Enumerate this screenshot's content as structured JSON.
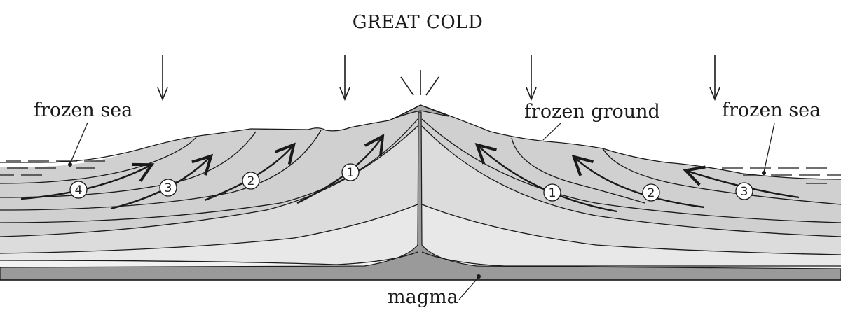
{
  "diagram": {
    "title": "GREAT COLD",
    "labels": {
      "frozen_sea_left": "frozen sea",
      "frozen_ground": "frozen ground",
      "frozen_sea_right": "frozen sea",
      "magma": "magma"
    },
    "left_flow_markers": [
      "4",
      "3",
      "2",
      "1"
    ],
    "right_flow_markers": [
      "1",
      "2",
      "3"
    ],
    "colors": {
      "stroke": "#1a1a1a",
      "layer_upper": "#d0d0d0",
      "layer_middle": "#dcdcdc",
      "layer_lower": "#e8e8e8",
      "layer_core": "#f2f2f2",
      "magma": "#9a9a9a",
      "ice_cap": "#a9a9a9"
    }
  }
}
